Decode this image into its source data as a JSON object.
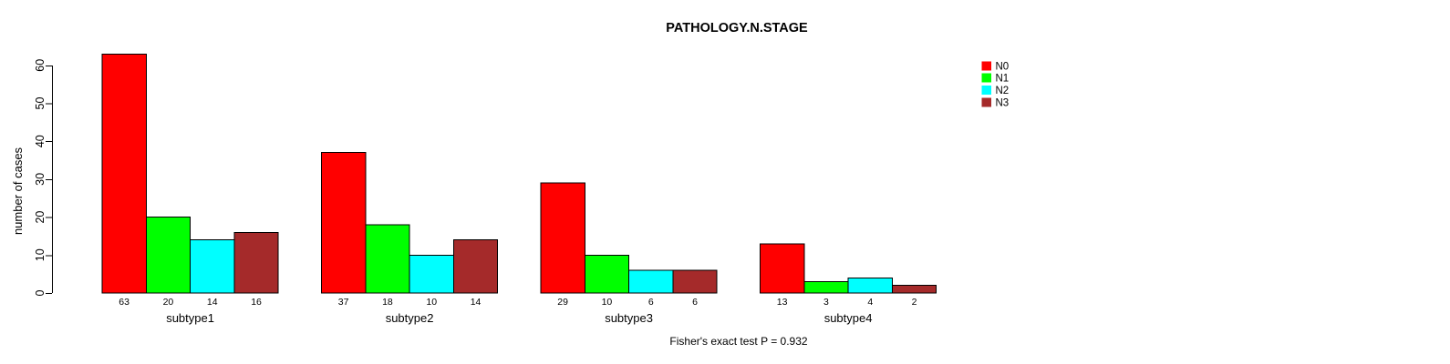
{
  "chart_data": {
    "type": "bar",
    "title": "PATHOLOGY.N.STAGE",
    "ylabel": "number of cases",
    "xlabel": "",
    "ylim": [
      0,
      60
    ],
    "yticks": [
      0,
      10,
      20,
      30,
      40,
      50,
      60
    ],
    "categories": [
      "subtype1",
      "subtype2",
      "subtype3",
      "subtype4"
    ],
    "series": [
      {
        "name": "N0",
        "color": "#FF0000",
        "values": [
          63,
          37,
          29,
          13
        ]
      },
      {
        "name": "N1",
        "color": "#00FF00",
        "values": [
          20,
          18,
          10,
          3
        ]
      },
      {
        "name": "N2",
        "color": "#00FFFF",
        "values": [
          14,
          10,
          6,
          4
        ]
      },
      {
        "name": "N3",
        "color": "#A52A2A",
        "values": [
          16,
          14,
          6,
          2
        ]
      }
    ],
    "bar_value_labels": true,
    "grid": false,
    "legend_position": "top-right",
    "annotation": "Fisher's exact test P = 0.932"
  },
  "colors": {
    "background": "#FFFFFF",
    "text": "#000000",
    "bar_border": "#000000"
  }
}
